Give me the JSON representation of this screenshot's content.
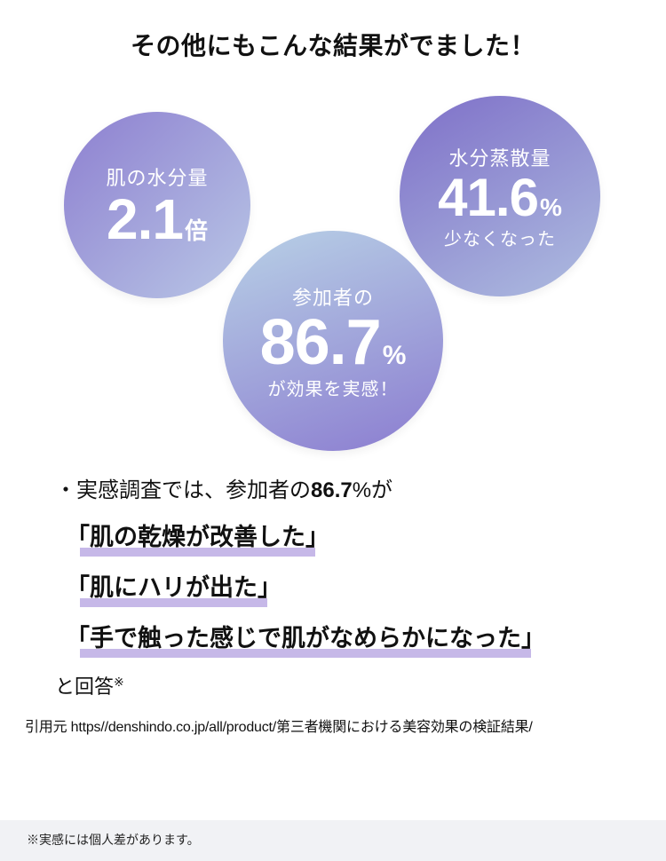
{
  "heading": "その他にもこんな結果がでました！",
  "circles": {
    "c1": {
      "label_top": "肌の水分量",
      "value": "2.1",
      "unit": "倍",
      "gradient_from": "#8d7fd0",
      "gradient_to": "#b9c7e6",
      "gradient_angle": "135deg"
    },
    "c2": {
      "label_top": "水分蒸散量",
      "value": "41.6",
      "unit": "%",
      "label_bottom": "少なくなった",
      "gradient_from": "#7e6fc8",
      "gradient_to": "#aebde0",
      "gradient_angle": "150deg"
    },
    "c3": {
      "label_top": "参加者の",
      "value": "86.7",
      "unit": "%",
      "label_bottom": "が効果を実感！",
      "gradient_from": "#b8d1e6",
      "gradient_to": "#8b7cd0",
      "gradient_angle": "160deg"
    }
  },
  "results": {
    "lead_prefix": "・実感調査では、参加者の",
    "lead_strong": "86.7",
    "lead_suffix": "%が",
    "quotes": [
      "「肌の乾燥が改善した」",
      "「肌にハリが出た」",
      "「手で触った感じで肌がなめらかになった」"
    ],
    "answer": "と回答",
    "answer_mark": "※",
    "underline_color": "#c6b8e8"
  },
  "source": "引用元 https//denshindo.co.jp/all/product/第三者機関における美容効果の検証結果/",
  "footnote": "※実感には個人差があります。"
}
